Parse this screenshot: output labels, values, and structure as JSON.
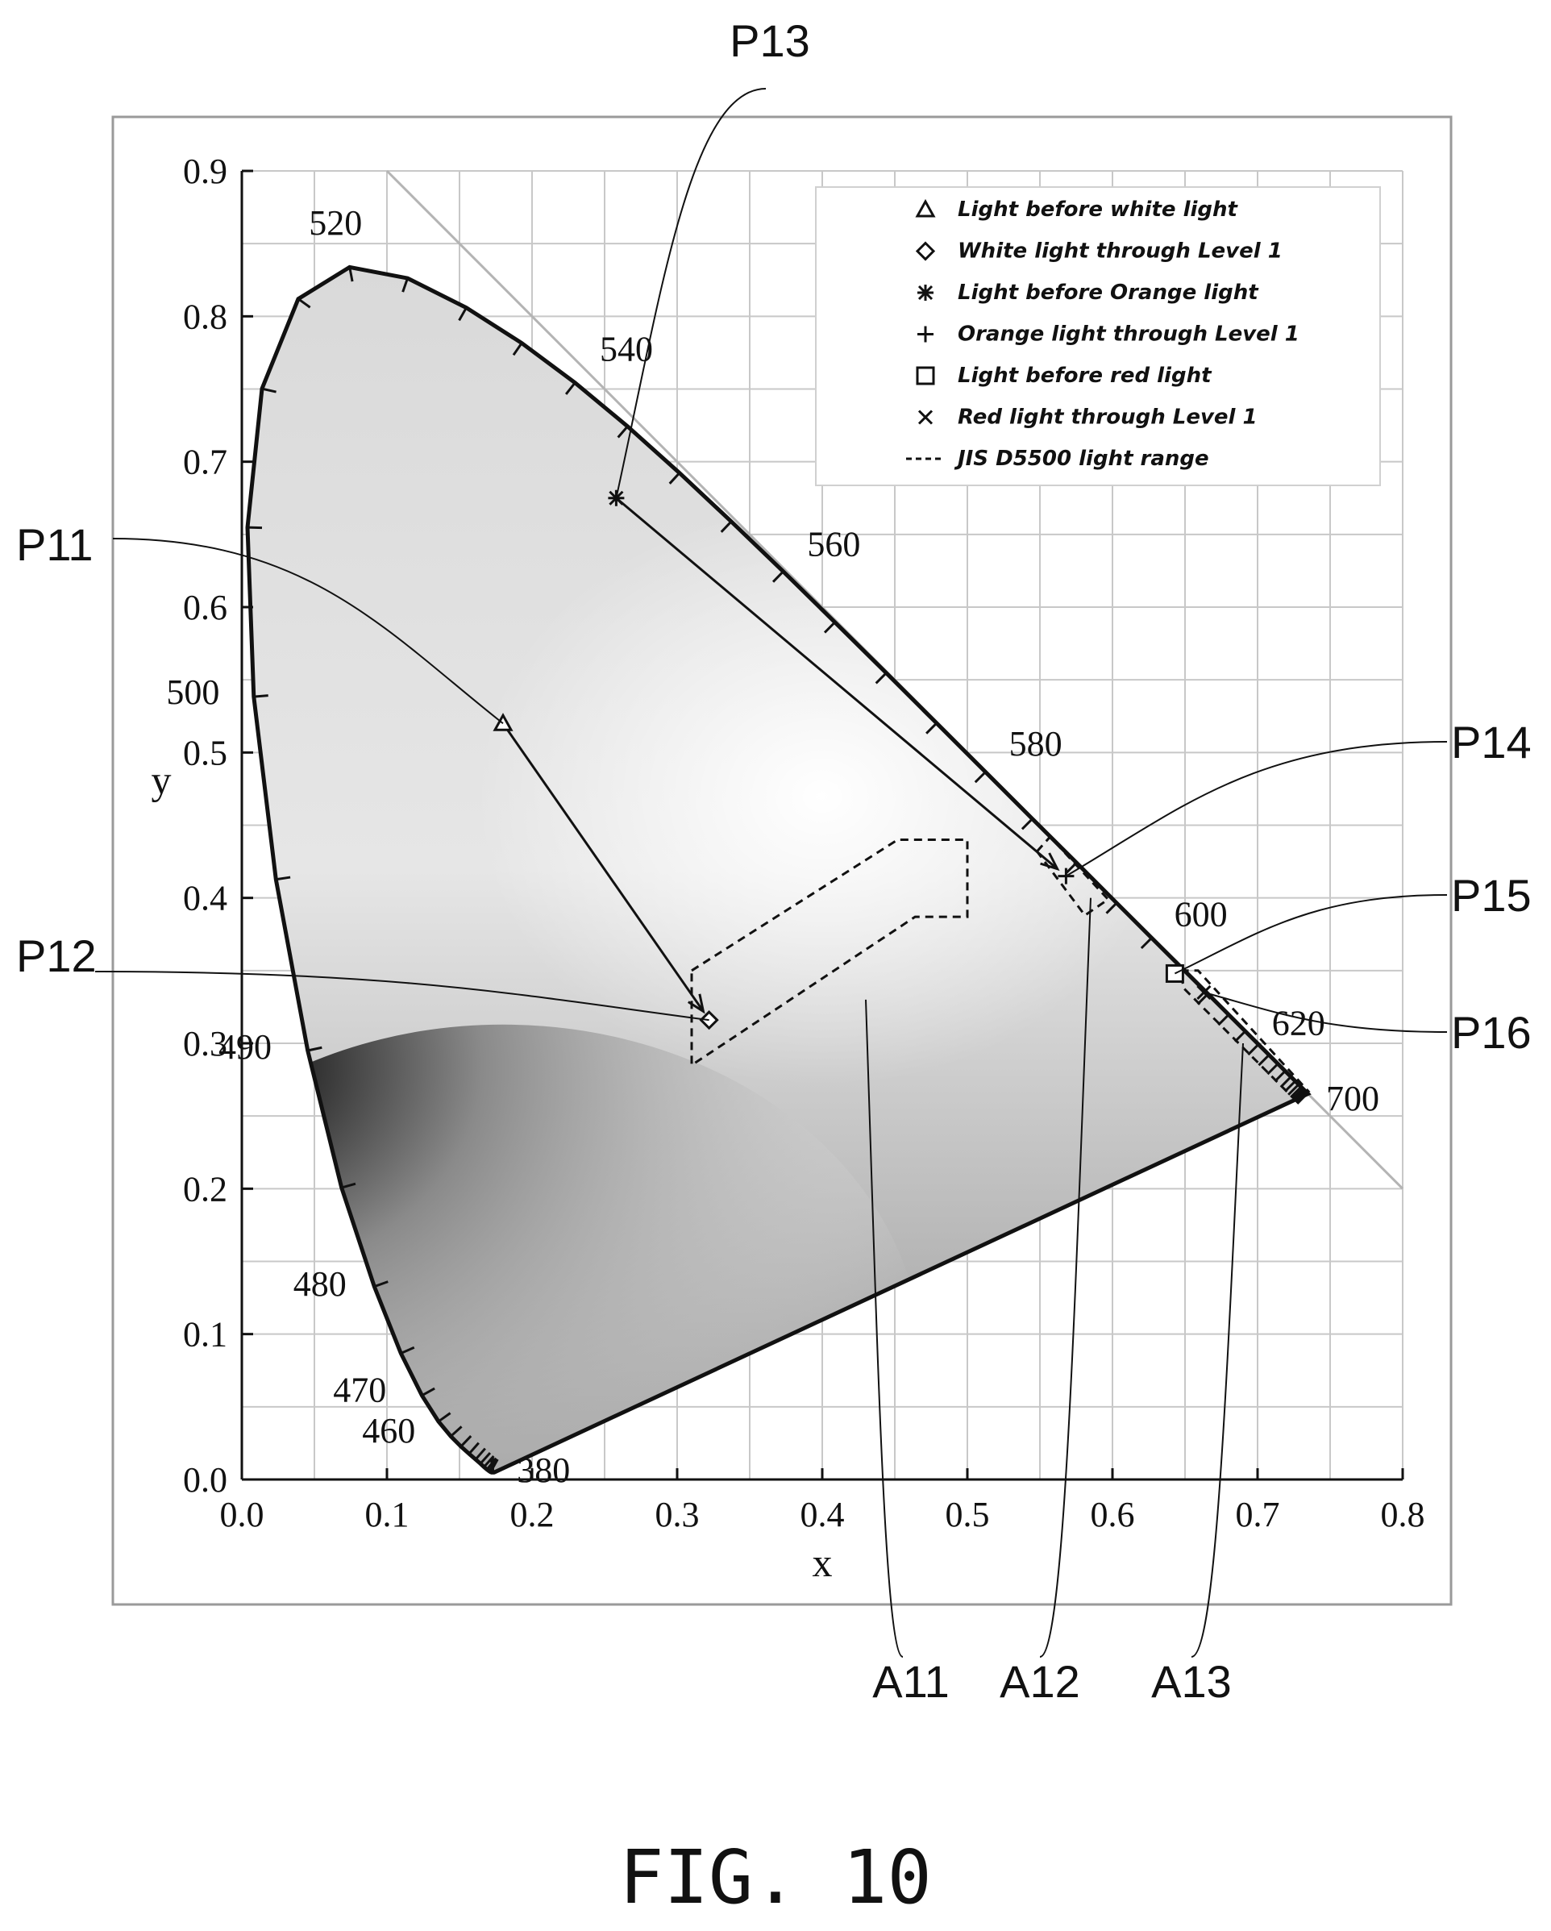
{
  "figure": {
    "caption": "FIG. 10"
  },
  "chart_data": {
    "type": "scatter",
    "title": "",
    "xlabel": "x",
    "ylabel": "y",
    "xlim": [
      0.0,
      0.8
    ],
    "ylim": [
      0.0,
      0.9
    ],
    "x_ticks": [
      "0.0",
      "0.1",
      "0.2",
      "0.3",
      "0.4",
      "0.5",
      "0.6",
      "0.7",
      "0.8"
    ],
    "y_ticks": [
      "0.0",
      "0.1",
      "0.2",
      "0.3",
      "0.4",
      "0.5",
      "0.6",
      "0.7",
      "0.8",
      "0.9"
    ],
    "grid": true,
    "legend_position": "top-right",
    "locus": [
      [
        0.1741,
        0.005
      ],
      [
        0.1738,
        0.0049
      ],
      [
        0.1736,
        0.0049
      ],
      [
        0.1733,
        0.0048
      ],
      [
        0.173,
        0.0048
      ],
      [
        0.1726,
        0.0048
      ],
      [
        0.1721,
        0.0048
      ],
      [
        0.1714,
        0.0051
      ],
      [
        0.1703,
        0.0058
      ],
      [
        0.1689,
        0.0069
      ],
      [
        0.1669,
        0.0086
      ],
      [
        0.1644,
        0.0109
      ],
      [
        0.1611,
        0.0138
      ],
      [
        0.1566,
        0.0177
      ],
      [
        0.151,
        0.0227
      ],
      [
        0.144,
        0.0297
      ],
      [
        0.1355,
        0.0399
      ],
      [
        0.1241,
        0.0578
      ],
      [
        0.1096,
        0.0868
      ],
      [
        0.0913,
        0.1327
      ],
      [
        0.0687,
        0.2007
      ],
      [
        0.0454,
        0.295
      ],
      [
        0.0235,
        0.4127
      ],
      [
        0.0082,
        0.5384
      ],
      [
        0.0039,
        0.6548
      ],
      [
        0.0139,
        0.7502
      ],
      [
        0.0389,
        0.812
      ],
      [
        0.0743,
        0.8338
      ],
      [
        0.1142,
        0.8262
      ],
      [
        0.1547,
        0.8059
      ],
      [
        0.1929,
        0.7816
      ],
      [
        0.2296,
        0.7543
      ],
      [
        0.2658,
        0.7243
      ],
      [
        0.3016,
        0.6923
      ],
      [
        0.3373,
        0.6589
      ],
      [
        0.3731,
        0.6245
      ],
      [
        0.4087,
        0.5896
      ],
      [
        0.4441,
        0.5547
      ],
      [
        0.4788,
        0.5202
      ],
      [
        0.5125,
        0.4866
      ],
      [
        0.5448,
        0.4544
      ],
      [
        0.5752,
        0.4242
      ],
      [
        0.6029,
        0.3965
      ],
      [
        0.627,
        0.3725
      ],
      [
        0.6482,
        0.3514
      ],
      [
        0.6658,
        0.334
      ],
      [
        0.6801,
        0.3197
      ],
      [
        0.6915,
        0.3083
      ],
      [
        0.7006,
        0.2993
      ],
      [
        0.7079,
        0.292
      ],
      [
        0.714,
        0.2859
      ],
      [
        0.719,
        0.2809
      ],
      [
        0.723,
        0.277
      ],
      [
        0.726,
        0.274
      ],
      [
        0.7283,
        0.2717
      ],
      [
        0.73,
        0.27
      ],
      [
        0.7311,
        0.2689
      ],
      [
        0.732,
        0.268
      ],
      [
        0.7327,
        0.2673
      ],
      [
        0.7334,
        0.2666
      ],
      [
        0.734,
        0.266
      ],
      [
        0.7344,
        0.2656
      ],
      [
        0.7346,
        0.2654
      ],
      [
        0.7347,
        0.2653
      ]
    ],
    "wavelength_labels": [
      {
        "text": "380",
        "x": 0.174,
        "y": 0.005
      },
      {
        "text": "460",
        "x": 0.144,
        "y": 0.03
      },
      {
        "text": "470",
        "x": 0.124,
        "y": 0.058
      },
      {
        "text": "480",
        "x": 0.091,
        "y": 0.133
      },
      {
        "text": "490",
        "x": 0.045,
        "y": 0.295
      },
      {
        "text": "500",
        "x": 0.008,
        "y": 0.538
      },
      {
        "text": "520",
        "x": 0.074,
        "y": 0.834
      },
      {
        "text": "540",
        "x": 0.23,
        "y": 0.754
      },
      {
        "text": "560",
        "x": 0.373,
        "y": 0.624
      },
      {
        "text": "580",
        "x": 0.512,
        "y": 0.487
      },
      {
        "text": "600",
        "x": 0.627,
        "y": 0.373
      },
      {
        "text": "620",
        "x": 0.691,
        "y": 0.308
      },
      {
        "text": "700",
        "x": 0.735,
        "y": 0.265
      }
    ],
    "series": [
      {
        "name": "Light before white light",
        "marker": "triangle",
        "x": [
          0.18
        ],
        "y": [
          0.52
        ]
      },
      {
        "name": "White light through Level 1",
        "marker": "diamond",
        "x": [
          0.322
        ],
        "y": [
          0.316
        ]
      },
      {
        "name": "Light before Orange light",
        "marker": "asterisk",
        "x": [
          0.258
        ],
        "y": [
          0.675
        ]
      },
      {
        "name": "Orange light through Level 1",
        "marker": "plus",
        "x": [
          0.568
        ],
        "y": [
          0.415
        ]
      },
      {
        "name": "Light before red light",
        "marker": "square",
        "x": [
          0.643
        ],
        "y": [
          0.348
        ]
      },
      {
        "name": "Red light through Level 1",
        "marker": "cross",
        "x": [
          0.663
        ],
        "y": [
          0.335
        ]
      },
      {
        "name": "JIS D5500 light range",
        "marker": "dashed"
      }
    ],
    "arrows": [
      {
        "from": [
          0.18,
          0.52
        ],
        "to": [
          0.318,
          0.322
        ]
      },
      {
        "from": [
          0.258,
          0.675
        ],
        "to": [
          0.562,
          0.42
        ]
      }
    ],
    "dashed_regions": [
      {
        "id": "A11",
        "points": [
          [
            0.31,
            0.35
          ],
          [
            0.452,
            0.44
          ],
          [
            0.5,
            0.44
          ],
          [
            0.5,
            0.387
          ],
          [
            0.464,
            0.387
          ],
          [
            0.31,
            0.285
          ]
        ]
      },
      {
        "id": "A12",
        "points": [
          [
            0.548,
            0.432
          ],
          [
            0.557,
            0.442
          ],
          [
            0.597,
            0.399
          ],
          [
            0.581,
            0.388
          ]
        ]
      },
      {
        "id": "A13",
        "points": [
          [
            0.647,
            0.35
          ],
          [
            0.659,
            0.35
          ],
          [
            0.735,
            0.267
          ],
          [
            0.724,
            0.263
          ],
          [
            0.649,
            0.338
          ]
        ]
      }
    ],
    "diagonal": [
      [
        0.1,
        0.9
      ],
      [
        0.8,
        0.2
      ]
    ],
    "callouts": [
      {
        "text": "P11",
        "to": [
          0.18,
          0.52
        ]
      },
      {
        "text": "P12",
        "to": [
          0.322,
          0.316
        ]
      },
      {
        "text": "P13",
        "to": [
          0.258,
          0.675
        ]
      },
      {
        "text": "P14",
        "to": [
          0.568,
          0.415
        ]
      },
      {
        "text": "P15",
        "to": [
          0.643,
          0.348
        ]
      },
      {
        "text": "P16",
        "to": [
          0.663,
          0.335
        ]
      },
      {
        "text": "A11",
        "to": [
          0.43,
          0.33
        ]
      },
      {
        "text": "A12",
        "to": [
          0.585,
          0.4
        ]
      },
      {
        "text": "A13",
        "to": [
          0.69,
          0.3
        ]
      }
    ],
    "colors": {
      "axis": "#111111",
      "grid": "#c8c8c8",
      "locus_fill_light": "#f4f4f4",
      "locus_fill_dark": "#1a1a1a",
      "diagonal": "#b4b4b4"
    }
  }
}
